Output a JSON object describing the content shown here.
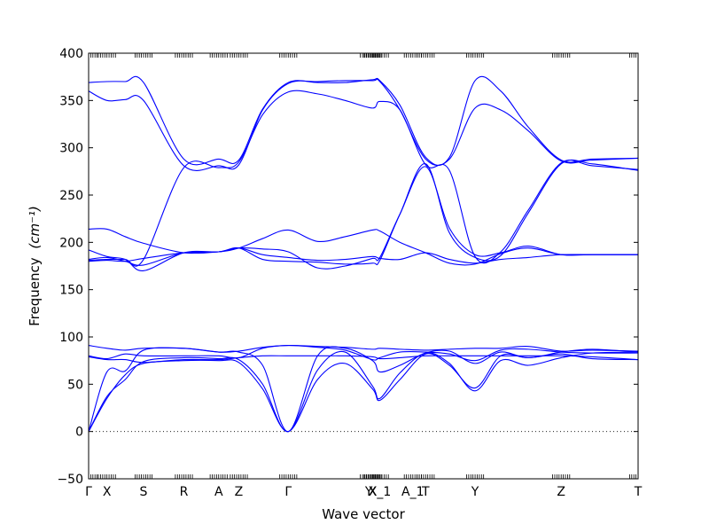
{
  "chart_data": {
    "type": "line",
    "title": "",
    "xlabel": "Wave vector",
    "ylabel": "Frequency",
    "ylabel_unit": "(cm⁻¹)",
    "ylim": [
      -50,
      400
    ],
    "yticks": [
      -50,
      0,
      50,
      100,
      150,
      200,
      250,
      300,
      350,
      400
    ],
    "xlim": [
      0,
      30
    ],
    "xticks": [
      {
        "x": 0,
        "label": "Γ"
      },
      {
        "x": 1,
        "label": "X"
      },
      {
        "x": 3,
        "label": "S"
      },
      {
        "x": 5.2,
        "label": "R"
      },
      {
        "x": 7.1,
        "label": "A"
      },
      {
        "x": 8.2,
        "label": "Z"
      },
      {
        "x": 10.9,
        "label": "Γ"
      },
      {
        "x": 15.3,
        "label": "Y"
      },
      {
        "x": 15.5,
        "label": "X"
      },
      {
        "x": 15.9,
        "label": "X_1"
      },
      {
        "x": 17.7,
        "label": "A_1"
      },
      {
        "x": 18.4,
        "label": "T"
      },
      {
        "x": 21.1,
        "label": "Y"
      },
      {
        "x": 25.8,
        "label": "Z"
      },
      {
        "x": 30,
        "label": "T"
      }
    ],
    "zero_line": 0,
    "line_color": "#0000ff",
    "series": [
      {
        "values": [
          [
            0,
            0
          ],
          [
            1,
            35
          ],
          [
            2,
            60
          ],
          [
            3,
            72
          ],
          [
            5.2,
            75
          ],
          [
            7.1,
            75
          ],
          [
            8.2,
            73
          ],
          [
            9.5,
            45
          ],
          [
            10.9,
            0
          ],
          [
            12.5,
            55
          ],
          [
            14,
            72
          ],
          [
            15.5,
            45
          ],
          [
            15.9,
            33
          ],
          [
            17,
            55
          ],
          [
            18.4,
            82
          ],
          [
            19.7,
            70
          ],
          [
            21.1,
            46
          ],
          [
            22.5,
            80
          ],
          [
            24,
            78
          ],
          [
            25.8,
            82
          ],
          [
            27.5,
            77
          ],
          [
            30,
            76
          ]
        ]
      },
      {
        "values": [
          [
            0,
            0
          ],
          [
            1,
            37
          ],
          [
            2,
            55
          ],
          [
            3,
            74
          ],
          [
            5.2,
            78
          ],
          [
            7.1,
            77
          ],
          [
            8.2,
            76
          ],
          [
            9.5,
            50
          ],
          [
            10.9,
            0
          ],
          [
            12.5,
            65
          ],
          [
            14,
            84
          ],
          [
            15.5,
            48
          ],
          [
            15.9,
            35
          ],
          [
            17,
            62
          ],
          [
            18.4,
            83
          ],
          [
            19.7,
            72
          ],
          [
            21.1,
            43
          ],
          [
            22.5,
            75
          ],
          [
            24,
            70
          ],
          [
            25.8,
            78
          ],
          [
            27.5,
            83
          ],
          [
            30,
            84
          ]
        ]
      },
      {
        "values": [
          [
            0,
            0
          ],
          [
            1,
            63
          ],
          [
            2,
            64
          ],
          [
            3,
            86
          ],
          [
            5.2,
            88
          ],
          [
            7.1,
            84
          ],
          [
            8.2,
            84
          ],
          [
            9.5,
            70
          ],
          [
            10.9,
            0
          ],
          [
            12.5,
            80
          ],
          [
            14,
            88
          ],
          [
            15.5,
            75
          ],
          [
            15.9,
            63
          ],
          [
            17,
            70
          ],
          [
            18.4,
            83
          ],
          [
            19.7,
            85
          ],
          [
            21.1,
            72
          ],
          [
            22.5,
            84
          ],
          [
            24,
            78
          ],
          [
            25.8,
            84
          ],
          [
            27.5,
            87
          ],
          [
            30,
            84
          ]
        ]
      },
      {
        "values": [
          [
            0,
            79
          ],
          [
            1,
            76
          ],
          [
            2,
            76
          ],
          [
            3,
            73
          ],
          [
            5.2,
            76
          ],
          [
            7.1,
            76
          ],
          [
            8.2,
            78
          ],
          [
            9.5,
            80
          ],
          [
            10.9,
            80
          ],
          [
            12.5,
            80
          ],
          [
            14,
            80
          ],
          [
            15.5,
            79
          ],
          [
            15.9,
            77
          ],
          [
            17,
            78
          ],
          [
            18.4,
            80
          ],
          [
            19.7,
            80
          ],
          [
            21.1,
            80
          ],
          [
            22.5,
            80
          ],
          [
            24,
            80
          ],
          [
            25.8,
            80
          ],
          [
            27.5,
            79
          ],
          [
            30,
            76
          ]
        ]
      },
      {
        "values": [
          [
            0,
            80
          ],
          [
            1,
            77
          ],
          [
            2,
            82
          ],
          [
            3,
            80
          ],
          [
            5.2,
            80
          ],
          [
            7.1,
            80
          ],
          [
            8.2,
            78
          ],
          [
            9.5,
            88
          ],
          [
            10.9,
            91
          ],
          [
            12.5,
            89
          ],
          [
            14,
            86
          ],
          [
            15.5,
            76
          ],
          [
            15.9,
            78
          ],
          [
            17,
            84
          ],
          [
            18.4,
            84
          ],
          [
            19.7,
            82
          ],
          [
            21.1,
            75
          ],
          [
            22.5,
            86
          ],
          [
            24,
            87
          ],
          [
            25.8,
            84
          ],
          [
            27.5,
            83
          ],
          [
            30,
            83
          ]
        ]
      },
      {
        "values": [
          [
            0,
            91
          ],
          [
            1,
            88
          ],
          [
            2,
            86
          ],
          [
            3,
            88
          ],
          [
            5.2,
            88
          ],
          [
            7.1,
            84
          ],
          [
            8.2,
            85
          ],
          [
            9.5,
            89
          ],
          [
            10.9,
            91
          ],
          [
            12.5,
            90
          ],
          [
            14,
            89
          ],
          [
            15.5,
            87
          ],
          [
            15.9,
            88
          ],
          [
            17,
            87
          ],
          [
            18.4,
            86
          ],
          [
            19.7,
            87
          ],
          [
            21.1,
            88
          ],
          [
            22.5,
            88
          ],
          [
            24,
            90
          ],
          [
            25.8,
            85
          ],
          [
            27.5,
            86
          ],
          [
            30,
            85
          ]
        ]
      },
      {
        "values": [
          [
            0,
            180
          ],
          [
            1,
            181
          ],
          [
            2,
            180
          ],
          [
            3,
            183
          ],
          [
            5.2,
            189
          ],
          [
            7.1,
            190
          ],
          [
            8.2,
            194
          ],
          [
            9.5,
            187
          ],
          [
            10.9,
            184
          ],
          [
            12.5,
            181
          ],
          [
            14,
            182
          ],
          [
            15.5,
            185
          ],
          [
            15.9,
            183
          ],
          [
            17,
            182
          ],
          [
            18.4,
            189
          ],
          [
            19.7,
            182
          ],
          [
            21.1,
            178
          ],
          [
            22.5,
            182
          ],
          [
            24,
            184
          ],
          [
            25.8,
            187
          ],
          [
            27.5,
            187
          ],
          [
            30,
            187
          ]
        ]
      },
      {
        "values": [
          [
            0,
            182
          ],
          [
            1,
            184
          ],
          [
            2,
            180
          ],
          [
            3,
            176
          ],
          [
            5.2,
            189
          ],
          [
            7.1,
            190
          ],
          [
            8.2,
            194
          ],
          [
            9.5,
            204
          ],
          [
            10.9,
            213
          ],
          [
            12.5,
            201
          ],
          [
            14,
            206
          ],
          [
            15.5,
            213
          ],
          [
            15.9,
            212
          ],
          [
            17,
            200
          ],
          [
            18.4,
            189
          ],
          [
            19.7,
            178
          ],
          [
            21.1,
            177
          ],
          [
            22.5,
            188
          ],
          [
            24,
            194
          ],
          [
            25.8,
            187
          ],
          [
            27.5,
            187
          ],
          [
            30,
            187
          ]
        ]
      },
      {
        "values": [
          [
            0,
            192
          ],
          [
            1,
            185
          ],
          [
            2,
            182
          ],
          [
            3,
            170
          ],
          [
            5.2,
            189
          ],
          [
            7.1,
            190
          ],
          [
            8.2,
            194
          ],
          [
            9.5,
            193
          ],
          [
            10.9,
            190
          ],
          [
            12.5,
            173
          ],
          [
            14,
            175
          ],
          [
            15.5,
            183
          ],
          [
            15.9,
            184
          ],
          [
            17,
            230
          ],
          [
            18.4,
            280
          ],
          [
            19.7,
            215
          ],
          [
            21.1,
            187
          ],
          [
            22.5,
            189
          ],
          [
            24,
            196
          ],
          [
            25.8,
            187
          ],
          [
            27.5,
            187
          ],
          [
            30,
            187
          ]
        ]
      },
      {
        "values": [
          [
            0,
            214
          ],
          [
            1,
            214
          ],
          [
            2,
            206
          ],
          [
            3,
            199
          ],
          [
            5.2,
            189
          ],
          [
            7.1,
            190
          ],
          [
            8.2,
            194
          ],
          [
            9.5,
            182
          ],
          [
            10.9,
            180
          ],
          [
            12.5,
            179
          ],
          [
            14,
            177
          ],
          [
            15.5,
            178
          ],
          [
            15.9,
            181
          ],
          [
            17,
            230
          ],
          [
            18.4,
            283
          ],
          [
            19.7,
            210
          ],
          [
            21.1,
            184
          ],
          [
            22.5,
            186
          ],
          [
            24,
            231
          ],
          [
            25.8,
            283
          ],
          [
            27.5,
            283
          ],
          [
            30,
            276
          ]
        ]
      },
      {
        "values": [
          [
            0,
            181
          ],
          [
            1,
            182
          ],
          [
            2,
            182
          ],
          [
            3,
            182
          ],
          [
            5.2,
            279
          ],
          [
            7.1,
            279
          ],
          [
            8.2,
            285
          ],
          [
            9.5,
            335
          ],
          [
            10.9,
            359
          ],
          [
            12.5,
            357
          ],
          [
            14,
            350
          ],
          [
            15.5,
            342
          ],
          [
            15.9,
            349
          ],
          [
            17,
            340
          ],
          [
            18.4,
            282
          ],
          [
            19.7,
            276
          ],
          [
            21.1,
            185
          ],
          [
            22.5,
            190
          ],
          [
            24,
            234
          ],
          [
            25.8,
            284
          ],
          [
            27.5,
            281
          ],
          [
            30,
            277
          ]
        ]
      },
      {
        "values": [
          [
            0,
            360
          ],
          [
            1,
            350
          ],
          [
            2,
            351
          ],
          [
            3,
            350
          ],
          [
            5.2,
            281
          ],
          [
            7.1,
            281
          ],
          [
            8.2,
            282
          ],
          [
            9.5,
            340
          ],
          [
            10.9,
            368
          ],
          [
            12.5,
            370
          ],
          [
            14,
            371
          ],
          [
            15.5,
            371
          ],
          [
            15.9,
            370
          ],
          [
            17,
            340
          ],
          [
            18.4,
            288
          ],
          [
            19.7,
            288
          ],
          [
            21.1,
            342
          ],
          [
            22.5,
            340
          ],
          [
            24,
            318
          ],
          [
            25.8,
            286
          ],
          [
            27.5,
            287
          ],
          [
            30,
            289
          ]
        ]
      },
      {
        "values": [
          [
            0,
            369
          ],
          [
            1,
            370
          ],
          [
            2,
            370
          ],
          [
            3,
            369
          ],
          [
            5.2,
            288
          ],
          [
            7.1,
            288
          ],
          [
            8.2,
            287
          ],
          [
            9.5,
            341
          ],
          [
            10.9,
            369
          ],
          [
            12.5,
            369
          ],
          [
            14,
            369
          ],
          [
            15.5,
            372
          ],
          [
            15.9,
            371
          ],
          [
            17,
            345
          ],
          [
            18.4,
            290
          ],
          [
            19.7,
            290
          ],
          [
            21.1,
            371
          ],
          [
            22.5,
            360
          ],
          [
            24,
            322
          ],
          [
            25.8,
            287
          ],
          [
            27.5,
            288
          ],
          [
            30,
            289
          ]
        ]
      }
    ]
  }
}
